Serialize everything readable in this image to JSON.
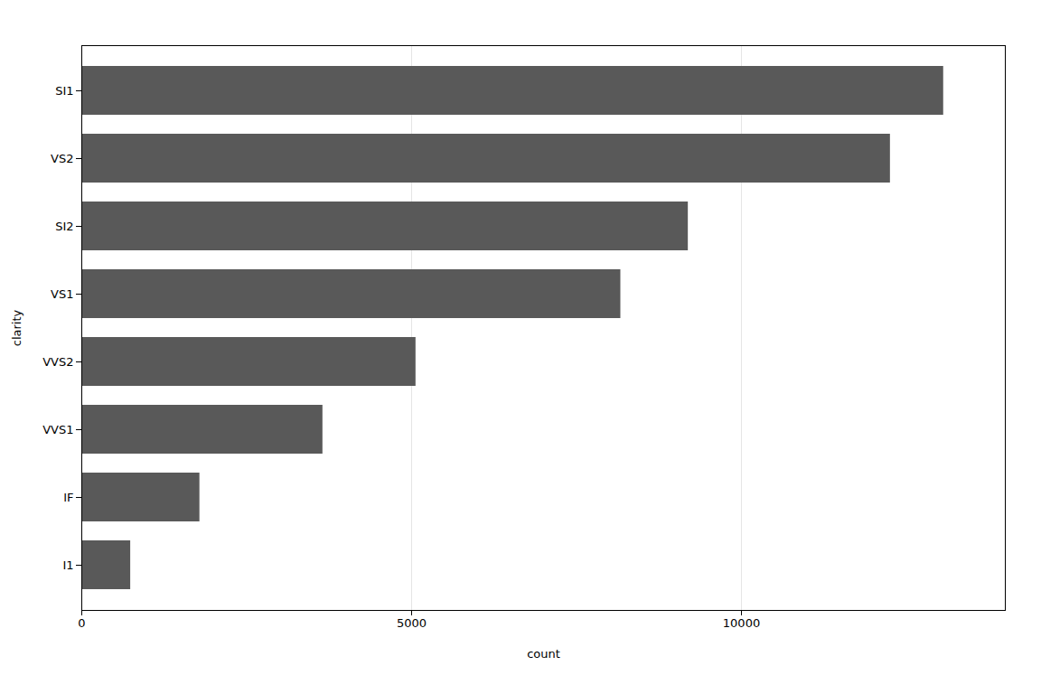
{
  "chart_data": {
    "type": "bar",
    "orientation": "horizontal",
    "categories": [
      "SI1",
      "VS2",
      "SI2",
      "VS1",
      "VVS2",
      "VVS1",
      "IF",
      "I1"
    ],
    "values": [
      13065,
      12258,
      9194,
      8171,
      5066,
      3655,
      1790,
      741
    ],
    "color": "#595959",
    "xlabel": "count",
    "ylabel": "clarity",
    "xlim": [
      0,
      14000
    ],
    "xticks": [
      0,
      5000,
      10000
    ],
    "grid": true
  }
}
